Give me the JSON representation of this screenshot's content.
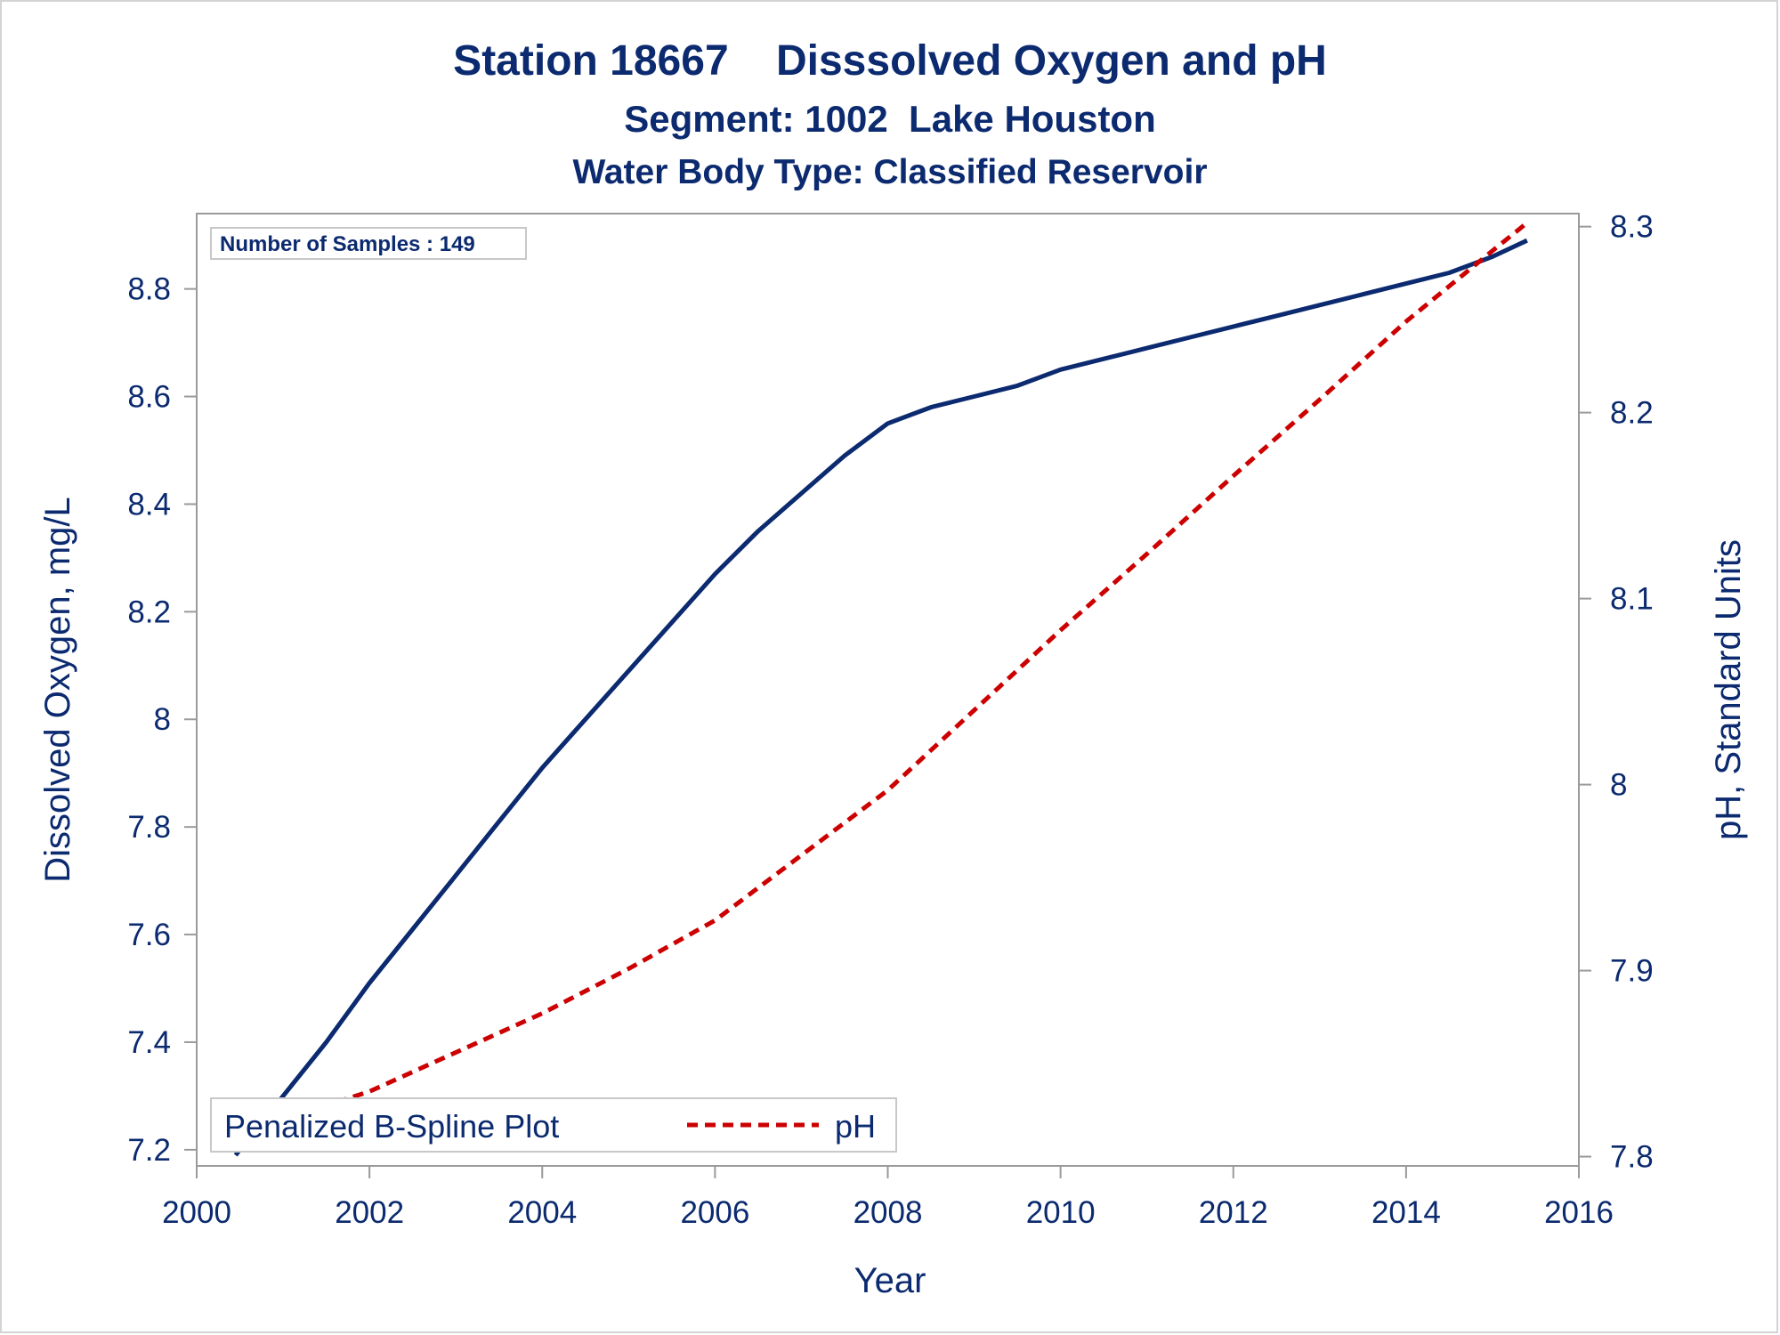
{
  "titles": {
    "line1": "Station 18667    Disssolved Oxygen and pH",
    "line2": "Segment: 1002  Lake Houston",
    "line3": "Water Body Type: Classified Reservoir"
  },
  "inset_text": "Number of Samples : 149",
  "legend": {
    "title": "Penalized B-Spline Plot",
    "entries": [
      {
        "label": "pH",
        "color": "#cc0000",
        "style": "dashed"
      }
    ]
  },
  "colors": {
    "do_line": "#0b2a6f",
    "ph_line": "#cc0000",
    "text": "#0b2a6f",
    "frame": "#9a9a9a"
  },
  "chart_data": {
    "type": "line",
    "xlabel": "Year",
    "ylabel": "Dissolved Oxygen, mg/L",
    "y2label": "pH, Standard Units",
    "xlim": [
      2000,
      2016
    ],
    "ylim": [
      7.17,
      8.94
    ],
    "y2lim": [
      7.795,
      8.307
    ],
    "x_ticks": [
      "2000",
      "2002",
      "2004",
      "2006",
      "2008",
      "2010",
      "2012",
      "2014",
      "2016"
    ],
    "y_ticks": [
      "7.2",
      "7.4",
      "7.6",
      "7.8",
      "8",
      "8.2",
      "8.4",
      "8.6",
      "8.8"
    ],
    "y2_ticks": [
      "7.8",
      "7.9",
      "8",
      "8.1",
      "8.2",
      "8.3"
    ],
    "legend_position": "bottom-left",
    "grid": false,
    "series": [
      {
        "axis": "left",
        "style": "solid",
        "x": [
          2000.45,
          2001.0,
          2001.5,
          2002.0,
          2002.5,
          2003.0,
          2003.5,
          2004.0,
          2004.5,
          2005.0,
          2005.5,
          2006.0,
          2006.5,
          2007.0,
          2007.5,
          2008.0,
          2008.5,
          2009.0,
          2009.5,
          2010.0,
          2010.5,
          2011.0,
          2011.5,
          2012.0,
          2012.5,
          2013.0,
          2013.5,
          2014.0,
          2014.5,
          2015.0,
          2015.4
        ],
        "values": [
          7.19,
          7.3,
          7.4,
          7.51,
          7.61,
          7.71,
          7.81,
          7.91,
          8.0,
          8.09,
          8.18,
          8.27,
          8.35,
          8.42,
          8.49,
          8.55,
          8.58,
          8.6,
          8.62,
          8.65,
          8.67,
          8.69,
          8.71,
          8.73,
          8.75,
          8.77,
          8.79,
          8.81,
          8.83,
          8.86,
          8.89
        ]
      },
      {
        "name": "pH",
        "axis": "right",
        "style": "dashed",
        "x": [
          2000.45,
          2001.0,
          2002.0,
          2003.0,
          2004.0,
          2005.0,
          2006.0,
          2007.0,
          2008.0,
          2009.0,
          2010.0,
          2011.0,
          2012.0,
          2013.0,
          2014.0,
          2015.0,
          2015.4
        ],
        "values": [
          7.81,
          7.82,
          7.835,
          7.856,
          7.877,
          7.901,
          7.927,
          7.962,
          7.997,
          8.04,
          8.083,
          8.124,
          8.166,
          8.207,
          8.249,
          8.287,
          8.302
        ]
      }
    ]
  }
}
